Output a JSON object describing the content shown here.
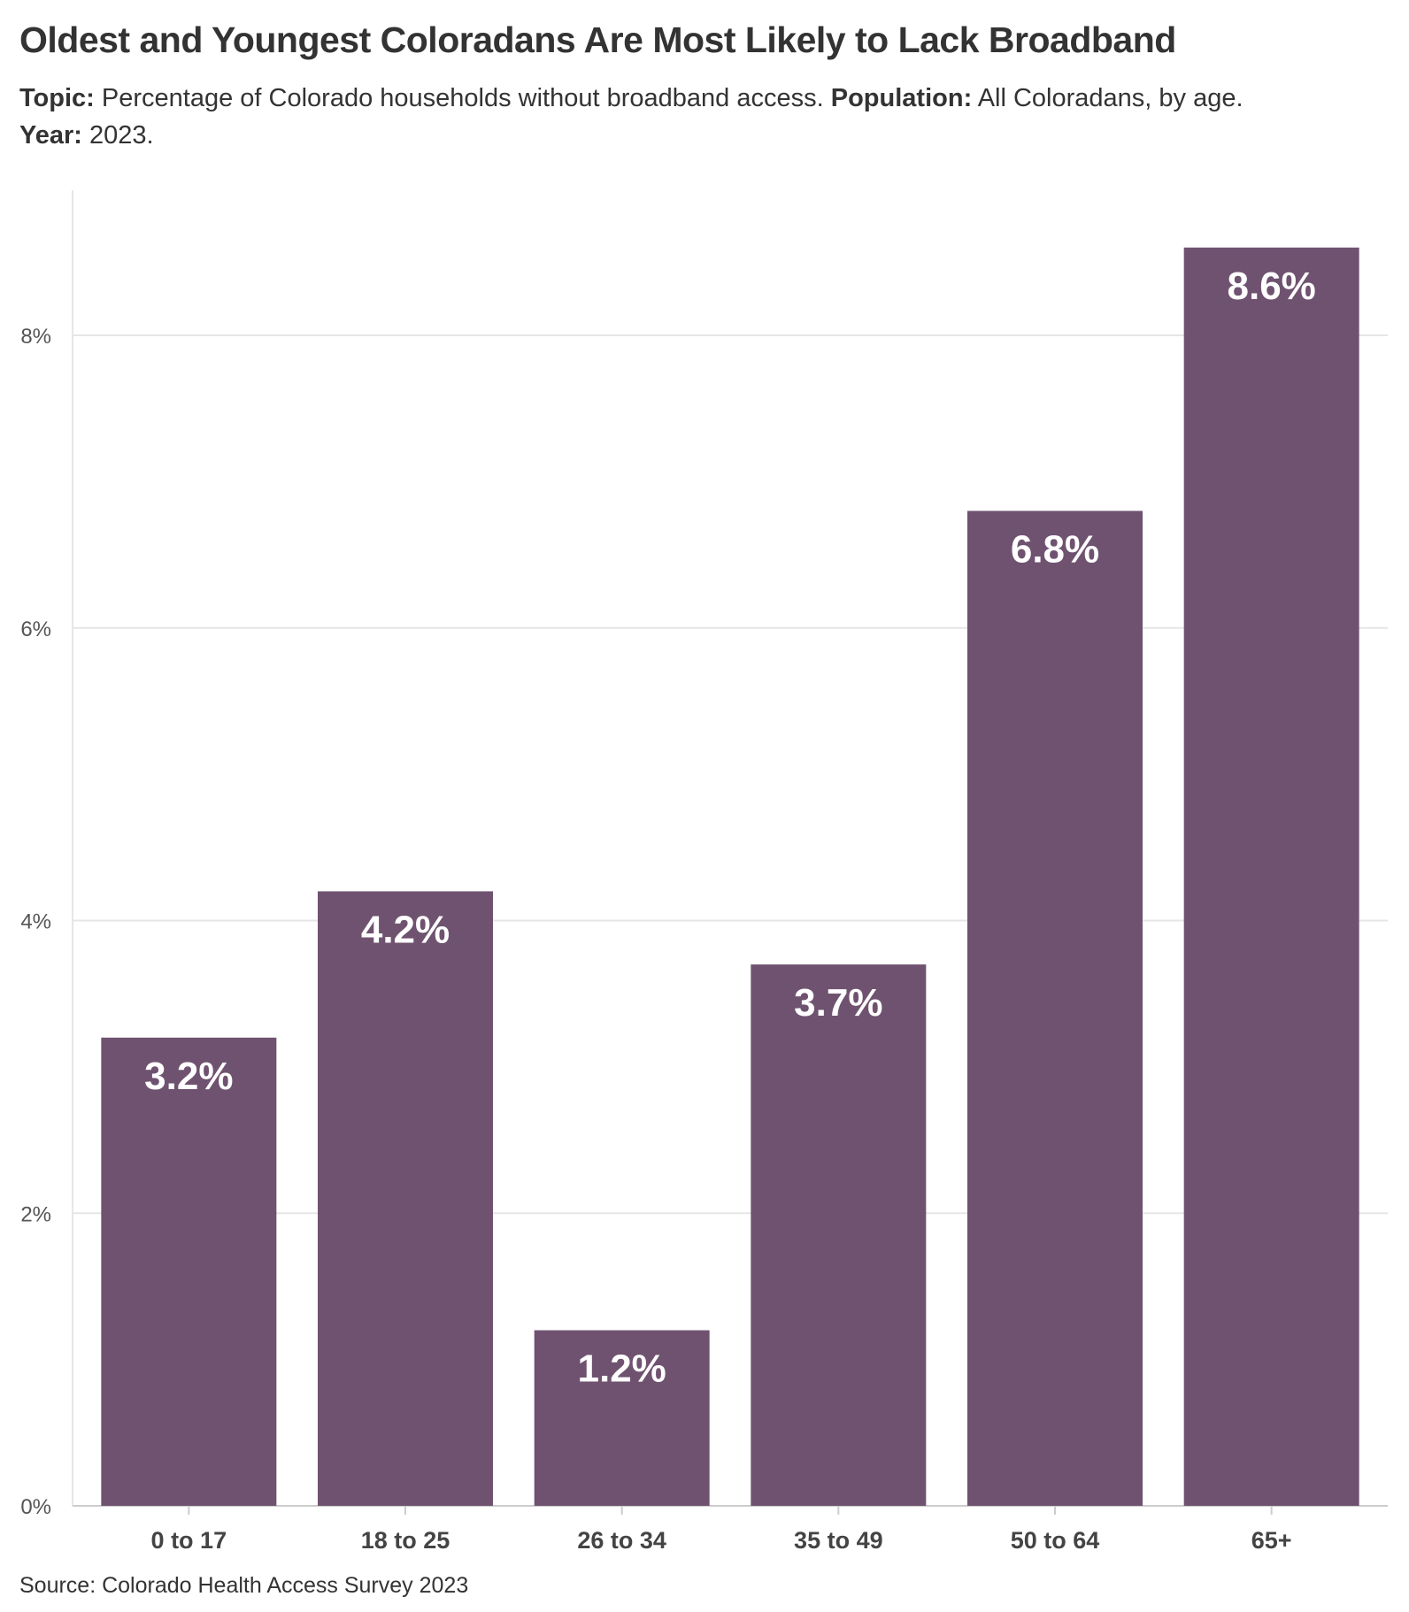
{
  "title": "Oldest and Youngest Coloradans Are Most Likely to Lack Broadband",
  "subtitle": {
    "topic_label": "Topic:",
    "topic_text": "Percentage of Colorado households without broadband access.",
    "population_label": "Population:",
    "population_text": "All Coloradans, by age.",
    "year_label": "Year:",
    "year_text": "2023."
  },
  "source": "Source: Colorado Health Access Survey 2023",
  "colors": {
    "bar": "#6f5270",
    "grid": "#e6e6e6",
    "axis": "#cccccc",
    "text": "#333333",
    "label": "#ffffff"
  },
  "chart_data": {
    "type": "bar",
    "categories": [
      "0 to 17",
      "18 to 25",
      "26 to 34",
      "35 to 49",
      "50 to 64",
      "65+"
    ],
    "values": [
      3.2,
      4.2,
      1.2,
      3.7,
      6.8,
      8.6
    ],
    "data_labels": [
      "3.2%",
      "4.2%",
      "1.2%",
      "3.7%",
      "6.8%",
      "8.6%"
    ],
    "yticks": [
      0,
      2,
      4,
      6,
      8
    ],
    "ytick_labels": [
      "0%",
      "2%",
      "4%",
      "6%",
      "8%"
    ],
    "ylim": [
      0,
      9.0
    ],
    "grid": true
  }
}
